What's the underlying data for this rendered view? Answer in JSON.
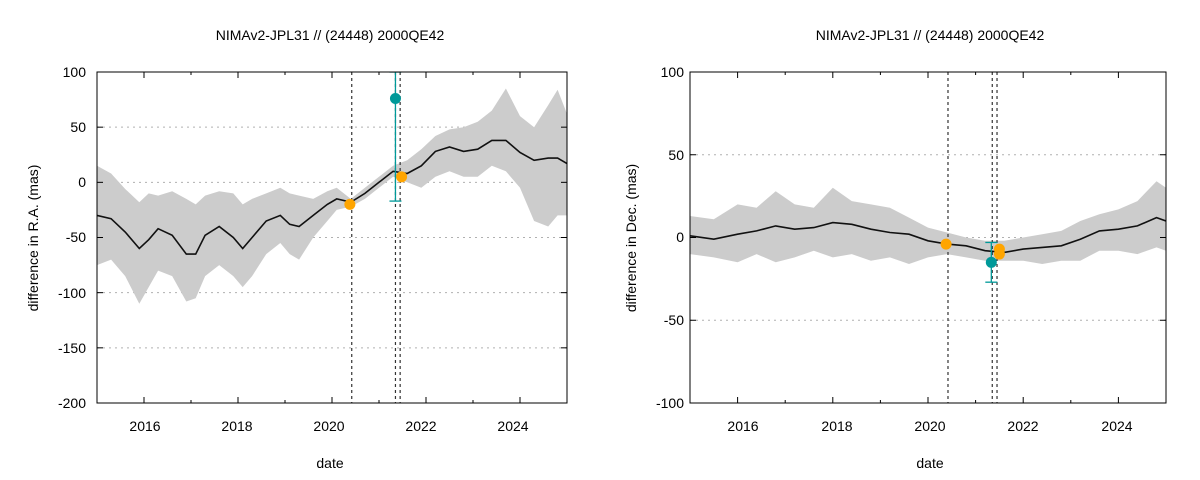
{
  "chart_data": [
    {
      "type": "line",
      "title": "NIMAv2-JPL31 // (24448) 2000QE42",
      "xlabel": "date",
      "ylabel": "difference in R.A. (mas)",
      "xlim": [
        2015,
        2025
      ],
      "ylim": [
        -200,
        100
      ],
      "xticks": [
        "2016",
        "2018",
        "2020",
        "2022",
        "2024"
      ],
      "yticks": [
        "-200",
        "-150",
        "-100",
        "-50",
        "0",
        "50",
        "100"
      ],
      "grid": "horizontal-dotted",
      "vlines": [
        2020.42,
        2021.35,
        2021.45
      ],
      "x": [
        2015.0,
        2015.3,
        2015.6,
        2015.9,
        2016.1,
        2016.3,
        2016.6,
        2016.9,
        2017.1,
        2017.3,
        2017.6,
        2017.9,
        2018.1,
        2018.3,
        2018.6,
        2018.9,
        2019.1,
        2019.3,
        2019.6,
        2019.9,
        2020.1,
        2020.4,
        2020.7,
        2021.0,
        2021.3,
        2021.6,
        2021.9,
        2022.2,
        2022.5,
        2022.8,
        2023.1,
        2023.4,
        2023.7,
        2024.0,
        2024.3,
        2024.6,
        2024.8,
        2025.0
      ],
      "y": [
        -30,
        -33,
        -45,
        -60,
        -52,
        -42,
        -48,
        -65,
        -65,
        -48,
        -40,
        -50,
        -60,
        -50,
        -35,
        -30,
        -38,
        -40,
        -30,
        -20,
        -15,
        -18,
        -10,
        0,
        10,
        8,
        15,
        28,
        32,
        28,
        30,
        38,
        38,
        27,
        20,
        22,
        22,
        17
      ],
      "band_upper": [
        15,
        8,
        -6,
        -18,
        -10,
        -12,
        -8,
        -15,
        -20,
        -12,
        -8,
        -10,
        -20,
        -15,
        -10,
        -5,
        -10,
        -12,
        -15,
        -8,
        -5,
        -15,
        -5,
        5,
        15,
        20,
        30,
        42,
        48,
        50,
        55,
        65,
        85,
        60,
        50,
        70,
        84,
        62
      ],
      "band_lower": [
        -75,
        -70,
        -85,
        -110,
        -95,
        -80,
        -85,
        -108,
        -105,
        -85,
        -75,
        -85,
        -95,
        -85,
        -65,
        -55,
        -65,
        -70,
        -50,
        -35,
        -25,
        -22,
        -15,
        -5,
        5,
        0,
        -5,
        5,
        10,
        5,
        5,
        15,
        10,
        -5,
        -35,
        -40,
        -30,
        -30
      ],
      "obs_points": [
        {
          "x": 2020.38,
          "y": -20,
          "color": "#ffa500"
        },
        {
          "x": 2021.48,
          "y": 5,
          "color": "#ffa500"
        },
        {
          "x": 2021.35,
          "y": 76,
          "color": "#009999",
          "err": 93
        }
      ]
    },
    {
      "type": "line",
      "title": "NIMAv2-JPL31 // (24448) 2000QE42",
      "xlabel": "date",
      "ylabel": "difference in Dec. (mas)",
      "xlim": [
        2015,
        2025
      ],
      "ylim": [
        -100,
        100
      ],
      "xticks": [
        "2016",
        "2018",
        "2020",
        "2022",
        "2024"
      ],
      "yticks": [
        "-100",
        "-50",
        "0",
        "50",
        "100"
      ],
      "grid": "horizontal-dotted",
      "vlines": [
        2020.42,
        2021.35,
        2021.45
      ],
      "x": [
        2015.0,
        2015.5,
        2016.0,
        2016.4,
        2016.8,
        2017.2,
        2017.6,
        2018.0,
        2018.4,
        2018.8,
        2019.2,
        2019.6,
        2020.0,
        2020.4,
        2020.8,
        2021.2,
        2021.6,
        2022.0,
        2022.4,
        2022.8,
        2023.2,
        2023.6,
        2024.0,
        2024.4,
        2024.8,
        2025.0
      ],
      "y": [
        1,
        -1,
        2,
        4,
        7,
        5,
        6,
        9,
        8,
        5,
        3,
        2,
        -2,
        -4,
        -5,
        -8,
        -9,
        -7,
        -6,
        -5,
        -1,
        4,
        5,
        7,
        12,
        10
      ],
      "band_upper": [
        13,
        11,
        20,
        18,
        28,
        20,
        18,
        30,
        22,
        20,
        18,
        12,
        6,
        3,
        0,
        -2,
        -2,
        0,
        2,
        4,
        10,
        14,
        17,
        22,
        34,
        30
      ],
      "band_lower": [
        -10,
        -12,
        -15,
        -10,
        -15,
        -12,
        -8,
        -12,
        -10,
        -14,
        -12,
        -16,
        -12,
        -10,
        -12,
        -14,
        -14,
        -14,
        -16,
        -14,
        -14,
        -8,
        -8,
        -10,
        -6,
        -8
      ],
      "obs_points": [
        {
          "x": 2020.38,
          "y": -4,
          "color": "#ffa500"
        },
        {
          "x": 2021.5,
          "y": -7,
          "color": "#ffa500"
        },
        {
          "x": 2021.5,
          "y": -10,
          "color": "#ffa500"
        },
        {
          "x": 2021.33,
          "y": -15,
          "color": "#009999",
          "err": 12
        }
      ]
    }
  ]
}
